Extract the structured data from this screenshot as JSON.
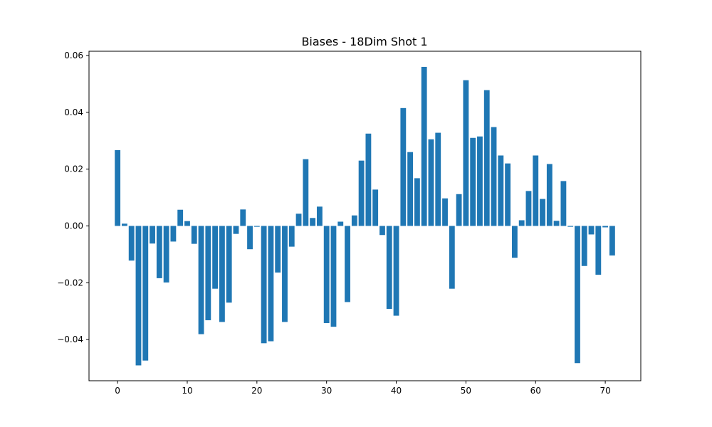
{
  "chart_data": {
    "type": "bar",
    "title": "Biases - 18Dim Shot 1",
    "xlabel": "",
    "ylabel": "",
    "bar_color": "#1f77b4",
    "xlim": [
      -4.1,
      75.1
    ],
    "ylim": [
      -0.0545,
      0.0615
    ],
    "xticks": [
      0,
      10,
      20,
      30,
      40,
      50,
      60,
      70
    ],
    "xtick_labels": [
      "0",
      "10",
      "20",
      "30",
      "40",
      "50",
      "60",
      "70"
    ],
    "yticks": [
      -0.04,
      -0.02,
      0.0,
      0.02,
      0.04,
      0.06
    ],
    "ytick_labels": [
      "−0.04",
      "−0.02",
      "0.00",
      "0.02",
      "0.04",
      "0.06"
    ],
    "grid": false,
    "legend": "none",
    "x": [
      0,
      1,
      2,
      3,
      4,
      5,
      6,
      7,
      8,
      9,
      10,
      11,
      12,
      13,
      14,
      15,
      16,
      17,
      18,
      19,
      20,
      21,
      22,
      23,
      24,
      25,
      26,
      27,
      28,
      29,
      30,
      31,
      32,
      33,
      34,
      35,
      36,
      37,
      38,
      39,
      40,
      41,
      42,
      43,
      44,
      45,
      46,
      47,
      48,
      49,
      50,
      51,
      52,
      53,
      54,
      55,
      56,
      57,
      58,
      59,
      60,
      61,
      62,
      63,
      64,
      65,
      66,
      67,
      68,
      69,
      70,
      71
    ],
    "values": [
      0.0267,
      0.0008,
      -0.0122,
      -0.0491,
      -0.0474,
      -0.0062,
      -0.0184,
      -0.0199,
      -0.0055,
      0.0057,
      0.0017,
      -0.0063,
      -0.0381,
      -0.0332,
      -0.0221,
      -0.0338,
      -0.027,
      -0.0028,
      0.0058,
      -0.0082,
      -0.0003,
      -0.0413,
      -0.0406,
      -0.0164,
      -0.0338,
      -0.0073,
      0.0043,
      0.0235,
      0.0028,
      0.0068,
      -0.0342,
      -0.0355,
      0.0015,
      -0.0268,
      0.0037,
      0.023,
      0.0325,
      0.0128,
      -0.0032,
      -0.0292,
      -0.0316,
      0.0415,
      0.026,
      0.0168,
      0.056,
      0.0305,
      0.0328,
      0.0097,
      -0.0221,
      0.0112,
      0.0513,
      0.031,
      0.0315,
      0.0478,
      0.0348,
      0.0248,
      0.022,
      -0.0112,
      0.002,
      0.0123,
      0.0248,
      0.0095,
      0.0218,
      0.0018,
      0.0158,
      -0.0003,
      -0.0483,
      -0.0141,
      -0.003,
      -0.0172,
      -0.0005,
      -0.0104
    ]
  }
}
